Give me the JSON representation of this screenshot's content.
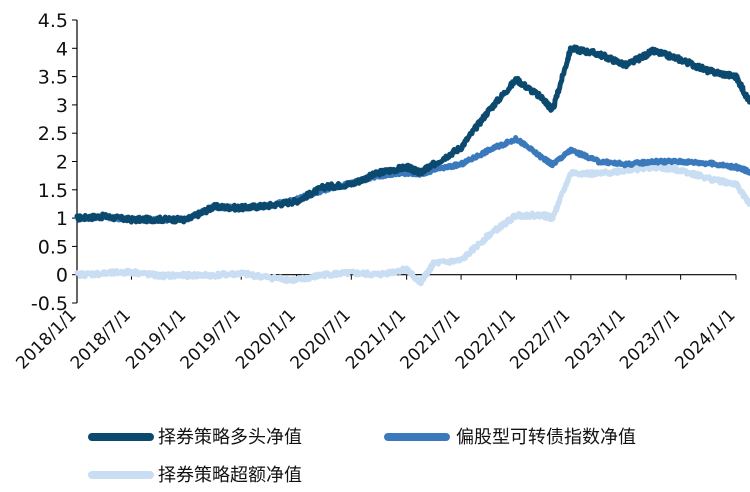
{
  "chart_data": {
    "type": "line",
    "title": "",
    "xlabel": "",
    "ylabel": "",
    "ylim": [
      -0.5,
      4.5
    ],
    "y_ticks": [
      "4.5",
      "4",
      "3.5",
      "3",
      "2.5",
      "2",
      "1.5",
      "1",
      "0.5",
      "0",
      "-0.5"
    ],
    "y_tick_values": [
      4.5,
      4,
      3.5,
      3,
      2.5,
      2,
      1.5,
      1,
      0.5,
      0,
      -0.5
    ],
    "x_ticks": [
      "2018/1/1",
      "2018/7/1",
      "2019/1/1",
      "2019/7/1",
      "2020/1/1",
      "2020/7/1",
      "2021/1/1",
      "2021/7/1",
      "2022/1/1",
      "2022/7/1",
      "2023/1/1",
      "2023/7/1",
      "2024/1/1"
    ],
    "grid": false,
    "legend_position": "bottom",
    "x_dates": [
      "2018/1/1",
      "2018/4/1",
      "2018/7/1",
      "2018/10/1",
      "2019/1/1",
      "2019/4/1",
      "2019/7/1",
      "2019/10/1",
      "2020/1/1",
      "2020/4/1",
      "2020/7/1",
      "2020/10/1",
      "2021/1/1",
      "2021/2/15",
      "2021/4/1",
      "2021/7/1",
      "2021/10/1",
      "2022/1/1",
      "2022/4/1",
      "2022/5/1",
      "2022/7/1",
      "2022/10/1",
      "2023/1/1",
      "2023/4/1",
      "2023/7/1",
      "2023/10/1",
      "2024/1/1",
      "2024/2/15"
    ],
    "series": [
      {
        "name": "择券策略多头净值",
        "color": "#0b4a6e",
        "values": [
          1.0,
          1.03,
          0.97,
          0.98,
          0.97,
          1.2,
          1.18,
          1.22,
          1.3,
          1.55,
          1.6,
          1.8,
          1.9,
          1.8,
          1.95,
          2.25,
          2.9,
          3.45,
          3.1,
          2.9,
          4.0,
          3.9,
          3.7,
          3.95,
          3.8,
          3.6,
          3.5,
          3.05
        ]
      },
      {
        "name": "偏股型可转债指数净值",
        "color": "#3b79bd",
        "values": [
          1.0,
          1.02,
          0.97,
          0.97,
          0.98,
          1.2,
          1.18,
          1.22,
          1.33,
          1.5,
          1.62,
          1.75,
          1.8,
          1.78,
          1.85,
          1.95,
          2.2,
          2.4,
          2.05,
          1.95,
          2.2,
          2.0,
          1.95,
          2.0,
          2.0,
          1.97,
          1.9,
          1.82
        ]
      },
      {
        "name": "择券策略超额净值",
        "color": "#c9def2",
        "values": [
          0.0,
          0.02,
          0.05,
          -0.02,
          -0.01,
          -0.01,
          0.02,
          -0.05,
          -0.1,
          0.0,
          0.03,
          0.0,
          0.1,
          -0.15,
          0.2,
          0.25,
          0.7,
          1.05,
          1.05,
          1.0,
          1.8,
          1.78,
          1.85,
          1.9,
          1.85,
          1.7,
          1.6,
          1.25
        ]
      }
    ]
  }
}
